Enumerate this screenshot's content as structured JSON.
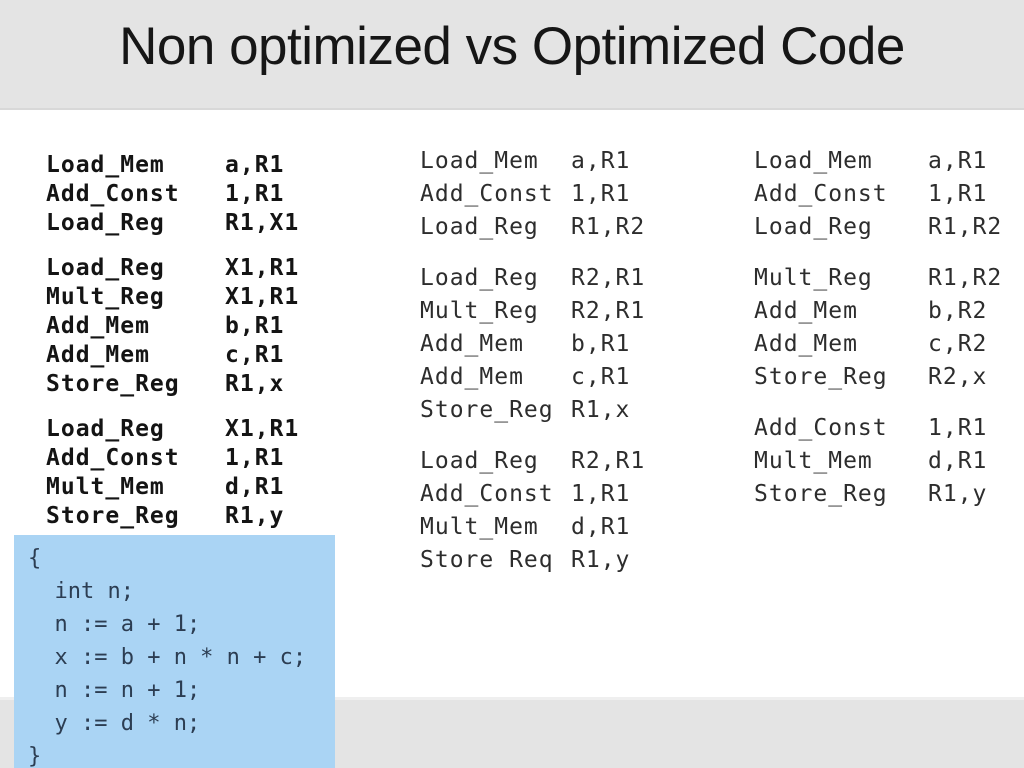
{
  "slide": {
    "title": "Non optimized vs Optimized Code"
  },
  "colors": {
    "title_band": "#e4e4e4",
    "bottom_band": "#e4e4e4",
    "source_box_background": "#aad4f4",
    "asm_text": "#141414",
    "source_text": "#2c3d52"
  },
  "columns": [
    {
      "name": "non-optimized-code",
      "blocks": [
        {
          "lines": [
            {
              "op": "Load_Mem",
              "args": "a,R1"
            },
            {
              "op": "Add_Const",
              "args": "1,R1"
            },
            {
              "op": "Load_Reg",
              "args": "R1,X1"
            }
          ]
        },
        {
          "lines": [
            {
              "op": "Load_Reg",
              "args": "X1,R1"
            },
            {
              "op": "Mult_Reg",
              "args": "X1,R1"
            },
            {
              "op": "Add_Mem",
              "args": "b,R1"
            },
            {
              "op": "Add_Mem",
              "args": "c,R1"
            },
            {
              "op": "Store_Reg",
              "args": "R1,x"
            }
          ]
        },
        {
          "lines": [
            {
              "op": "Load_Reg",
              "args": "X1,R1"
            },
            {
              "op": "Add_Const",
              "args": "1,R1"
            },
            {
              "op": "Mult_Mem",
              "args": "d,R1"
            },
            {
              "op": "Store_Reg",
              "args": "R1,y"
            }
          ]
        }
      ]
    },
    {
      "name": "optimized-code-step1",
      "blocks": [
        {
          "lines": [
            {
              "op": "Load_Mem",
              "args": "a,R1"
            },
            {
              "op": "Add_Const",
              "args": "1,R1"
            },
            {
              "op": "Load_Reg",
              "args": "R1,R2"
            }
          ]
        },
        {
          "lines": [
            {
              "op": "Load_Reg",
              "args": "R2,R1"
            },
            {
              "op": "Mult_Reg",
              "args": "R2,R1"
            },
            {
              "op": "Add_Mem",
              "args": "b,R1"
            },
            {
              "op": "Add_Mem",
              "args": "c,R1"
            },
            {
              "op": "Store_Reg",
              "args": "R1,x"
            }
          ]
        },
        {
          "lines": [
            {
              "op": "Load_Reg",
              "args": "R2,R1"
            },
            {
              "op": "Add_Const",
              "args": "1,R1"
            },
            {
              "op": "Mult_Mem",
              "args": "d,R1"
            },
            {
              "op": "Store Req",
              "args": "R1,y"
            }
          ]
        }
      ]
    },
    {
      "name": "optimized-code-step2",
      "blocks": [
        {
          "lines": [
            {
              "op": "Load_Mem",
              "args": "a,R1"
            },
            {
              "op": "Add_Const",
              "args": "1,R1"
            },
            {
              "op": "Load_Reg",
              "args": "R1,R2"
            }
          ]
        },
        {
          "lines": [
            {
              "op": "Mult_Reg",
              "args": "R1,R2"
            },
            {
              "op": "Add_Mem",
              "args": "b,R2"
            },
            {
              "op": "Add_Mem",
              "args": "c,R2"
            },
            {
              "op": "Store_Reg",
              "args": "R2,x"
            }
          ]
        },
        {
          "lines": [
            {
              "op": "Add_Const",
              "args": "1,R1"
            },
            {
              "op": "Mult_Mem",
              "args": "d,R1"
            },
            {
              "op": "Store_Reg",
              "args": "R1,y"
            }
          ]
        }
      ]
    }
  ],
  "source_code": {
    "lines": [
      "{",
      "  int n;",
      "  n := a + 1;",
      "  x := b + n * n + c;",
      "  n := n + 1;",
      "  y := d * n;",
      "}"
    ]
  }
}
